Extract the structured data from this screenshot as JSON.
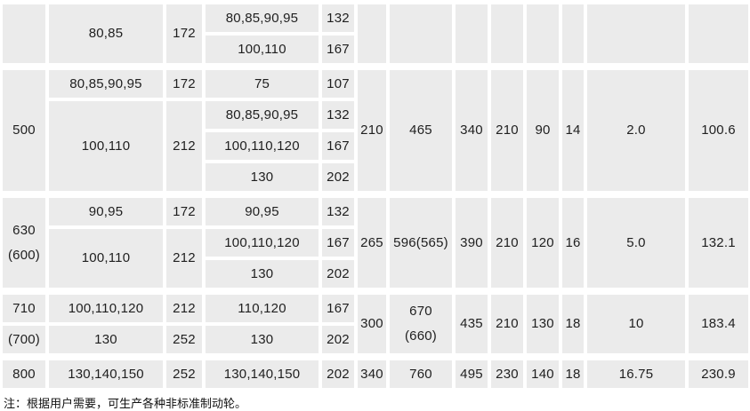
{
  "colors": {
    "cell_background": "#ebebeb",
    "cell_text": "#1f1f1f",
    "page_background": "#ffffff"
  },
  "table": {
    "note": "注：根据用户需要，可生产各种非标准制动轮。",
    "cells": [
      {
        "r": 1,
        "c": 1,
        "rs": 2,
        "text": ""
      },
      {
        "r": 1,
        "c": 2,
        "rs": 2,
        "text": "80,85"
      },
      {
        "r": 1,
        "c": 3,
        "rs": 2,
        "text": "172"
      },
      {
        "r": 1,
        "c": 4,
        "rs": 1,
        "text": "80,85,90,95"
      },
      {
        "r": 1,
        "c": 5,
        "rs": 1,
        "text": "132"
      },
      {
        "r": 2,
        "c": 4,
        "rs": 1,
        "text": "100,110"
      },
      {
        "r": 2,
        "c": 5,
        "rs": 1,
        "text": "167"
      },
      {
        "r": 1,
        "c": 6,
        "rs": 2,
        "text": ""
      },
      {
        "r": 1,
        "c": 7,
        "rs": 2,
        "text": ""
      },
      {
        "r": 1,
        "c": 8,
        "rs": 2,
        "text": ""
      },
      {
        "r": 1,
        "c": 9,
        "rs": 2,
        "text": ""
      },
      {
        "r": 1,
        "c": 10,
        "rs": 2,
        "text": ""
      },
      {
        "r": 1,
        "c": 11,
        "rs": 2,
        "text": ""
      },
      {
        "r": 1,
        "c": 12,
        "rs": 2,
        "text": ""
      },
      {
        "r": 1,
        "c": 13,
        "rs": 2,
        "text": ""
      },
      {
        "r": 3,
        "c": 1,
        "rs": 4,
        "text": "500"
      },
      {
        "r": 3,
        "c": 2,
        "rs": 1,
        "text": "80,85,90,95"
      },
      {
        "r": 3,
        "c": 3,
        "rs": 1,
        "text": "172"
      },
      {
        "r": 3,
        "c": 4,
        "rs": 1,
        "text": "75"
      },
      {
        "r": 3,
        "c": 5,
        "rs": 1,
        "text": "107"
      },
      {
        "r": 4,
        "c": 2,
        "rs": 3,
        "text": "100,110"
      },
      {
        "r": 4,
        "c": 3,
        "rs": 3,
        "text": "212"
      },
      {
        "r": 4,
        "c": 4,
        "rs": 1,
        "text": "80,85,90,95"
      },
      {
        "r": 4,
        "c": 5,
        "rs": 1,
        "text": "132"
      },
      {
        "r": 5,
        "c": 4,
        "rs": 1,
        "text": "100,110,120"
      },
      {
        "r": 5,
        "c": 5,
        "rs": 1,
        "text": "167"
      },
      {
        "r": 6,
        "c": 4,
        "rs": 1,
        "text": "130"
      },
      {
        "r": 6,
        "c": 5,
        "rs": 1,
        "text": "202"
      },
      {
        "r": 3,
        "c": 6,
        "rs": 4,
        "text": "210"
      },
      {
        "r": 3,
        "c": 7,
        "rs": 4,
        "text": "465"
      },
      {
        "r": 3,
        "c": 8,
        "rs": 4,
        "text": "340"
      },
      {
        "r": 3,
        "c": 9,
        "rs": 4,
        "text": "210"
      },
      {
        "r": 3,
        "c": 10,
        "rs": 4,
        "text": "90"
      },
      {
        "r": 3,
        "c": 11,
        "rs": 4,
        "text": "14"
      },
      {
        "r": 3,
        "c": 12,
        "rs": 4,
        "text": "2.0"
      },
      {
        "r": 3,
        "c": 13,
        "rs": 4,
        "text": "100.6"
      },
      {
        "r": 7,
        "c": 1,
        "rs": 3,
        "text": "630\n(600)"
      },
      {
        "r": 7,
        "c": 2,
        "rs": 1,
        "text": "90,95"
      },
      {
        "r": 7,
        "c": 3,
        "rs": 1,
        "text": "172"
      },
      {
        "r": 7,
        "c": 4,
        "rs": 1,
        "text": "90,95"
      },
      {
        "r": 7,
        "c": 5,
        "rs": 1,
        "text": "132"
      },
      {
        "r": 8,
        "c": 2,
        "rs": 2,
        "text": "100,110"
      },
      {
        "r": 8,
        "c": 3,
        "rs": 2,
        "text": "212"
      },
      {
        "r": 8,
        "c": 4,
        "rs": 1,
        "text": "100,110,120"
      },
      {
        "r": 8,
        "c": 5,
        "rs": 1,
        "text": "167"
      },
      {
        "r": 9,
        "c": 4,
        "rs": 1,
        "text": "130"
      },
      {
        "r": 9,
        "c": 5,
        "rs": 1,
        "text": "202"
      },
      {
        "r": 7,
        "c": 6,
        "rs": 3,
        "text": "265"
      },
      {
        "r": 7,
        "c": 7,
        "rs": 3,
        "text": "596(565)"
      },
      {
        "r": 7,
        "c": 8,
        "rs": 3,
        "text": "390"
      },
      {
        "r": 7,
        "c": 9,
        "rs": 3,
        "text": "210"
      },
      {
        "r": 7,
        "c": 10,
        "rs": 3,
        "text": "120"
      },
      {
        "r": 7,
        "c": 11,
        "rs": 3,
        "text": "16"
      },
      {
        "r": 7,
        "c": 12,
        "rs": 3,
        "text": "5.0"
      },
      {
        "r": 7,
        "c": 13,
        "rs": 3,
        "text": "132.1"
      },
      {
        "r": 10,
        "c": 1,
        "rs": 1,
        "text": "710"
      },
      {
        "r": 11,
        "c": 1,
        "rs": 1,
        "text": "(700)"
      },
      {
        "r": 10,
        "c": 2,
        "rs": 1,
        "text": "100,110,120"
      },
      {
        "r": 10,
        "c": 3,
        "rs": 1,
        "text": "212"
      },
      {
        "r": 10,
        "c": 4,
        "rs": 1,
        "text": "110,120"
      },
      {
        "r": 10,
        "c": 5,
        "rs": 1,
        "text": "167"
      },
      {
        "r": 11,
        "c": 2,
        "rs": 1,
        "text": "130"
      },
      {
        "r": 11,
        "c": 3,
        "rs": 1,
        "text": "252"
      },
      {
        "r": 11,
        "c": 4,
        "rs": 1,
        "text": "130"
      },
      {
        "r": 11,
        "c": 5,
        "rs": 1,
        "text": "202"
      },
      {
        "r": 10,
        "c": 6,
        "rs": 2,
        "text": "300"
      },
      {
        "r": 10,
        "c": 7,
        "rs": 2,
        "text": "670\n(660)"
      },
      {
        "r": 10,
        "c": 8,
        "rs": 2,
        "text": "435"
      },
      {
        "r": 10,
        "c": 9,
        "rs": 2,
        "text": "210"
      },
      {
        "r": 10,
        "c": 10,
        "rs": 2,
        "text": "130"
      },
      {
        "r": 10,
        "c": 11,
        "rs": 2,
        "text": "18"
      },
      {
        "r": 10,
        "c": 12,
        "rs": 2,
        "text": "10"
      },
      {
        "r": 10,
        "c": 13,
        "rs": 2,
        "text": "183.4"
      },
      {
        "r": 12,
        "c": 1,
        "rs": 1,
        "text": "800"
      },
      {
        "r": 12,
        "c": 2,
        "rs": 1,
        "text": "130,140,150"
      },
      {
        "r": 12,
        "c": 3,
        "rs": 1,
        "text": "252"
      },
      {
        "r": 12,
        "c": 4,
        "rs": 1,
        "text": "130,140,150"
      },
      {
        "r": 12,
        "c": 5,
        "rs": 1,
        "text": "202"
      },
      {
        "r": 12,
        "c": 6,
        "rs": 1,
        "text": "340"
      },
      {
        "r": 12,
        "c": 7,
        "rs": 1,
        "text": "760"
      },
      {
        "r": 12,
        "c": 8,
        "rs": 1,
        "text": "495"
      },
      {
        "r": 12,
        "c": 9,
        "rs": 1,
        "text": "230"
      },
      {
        "r": 12,
        "c": 10,
        "rs": 1,
        "text": "140"
      },
      {
        "r": 12,
        "c": 11,
        "rs": 1,
        "text": "18"
      },
      {
        "r": 12,
        "c": 12,
        "rs": 1,
        "text": "16.75"
      },
      {
        "r": 12,
        "c": 13,
        "rs": 1,
        "text": "230.9"
      }
    ]
  }
}
